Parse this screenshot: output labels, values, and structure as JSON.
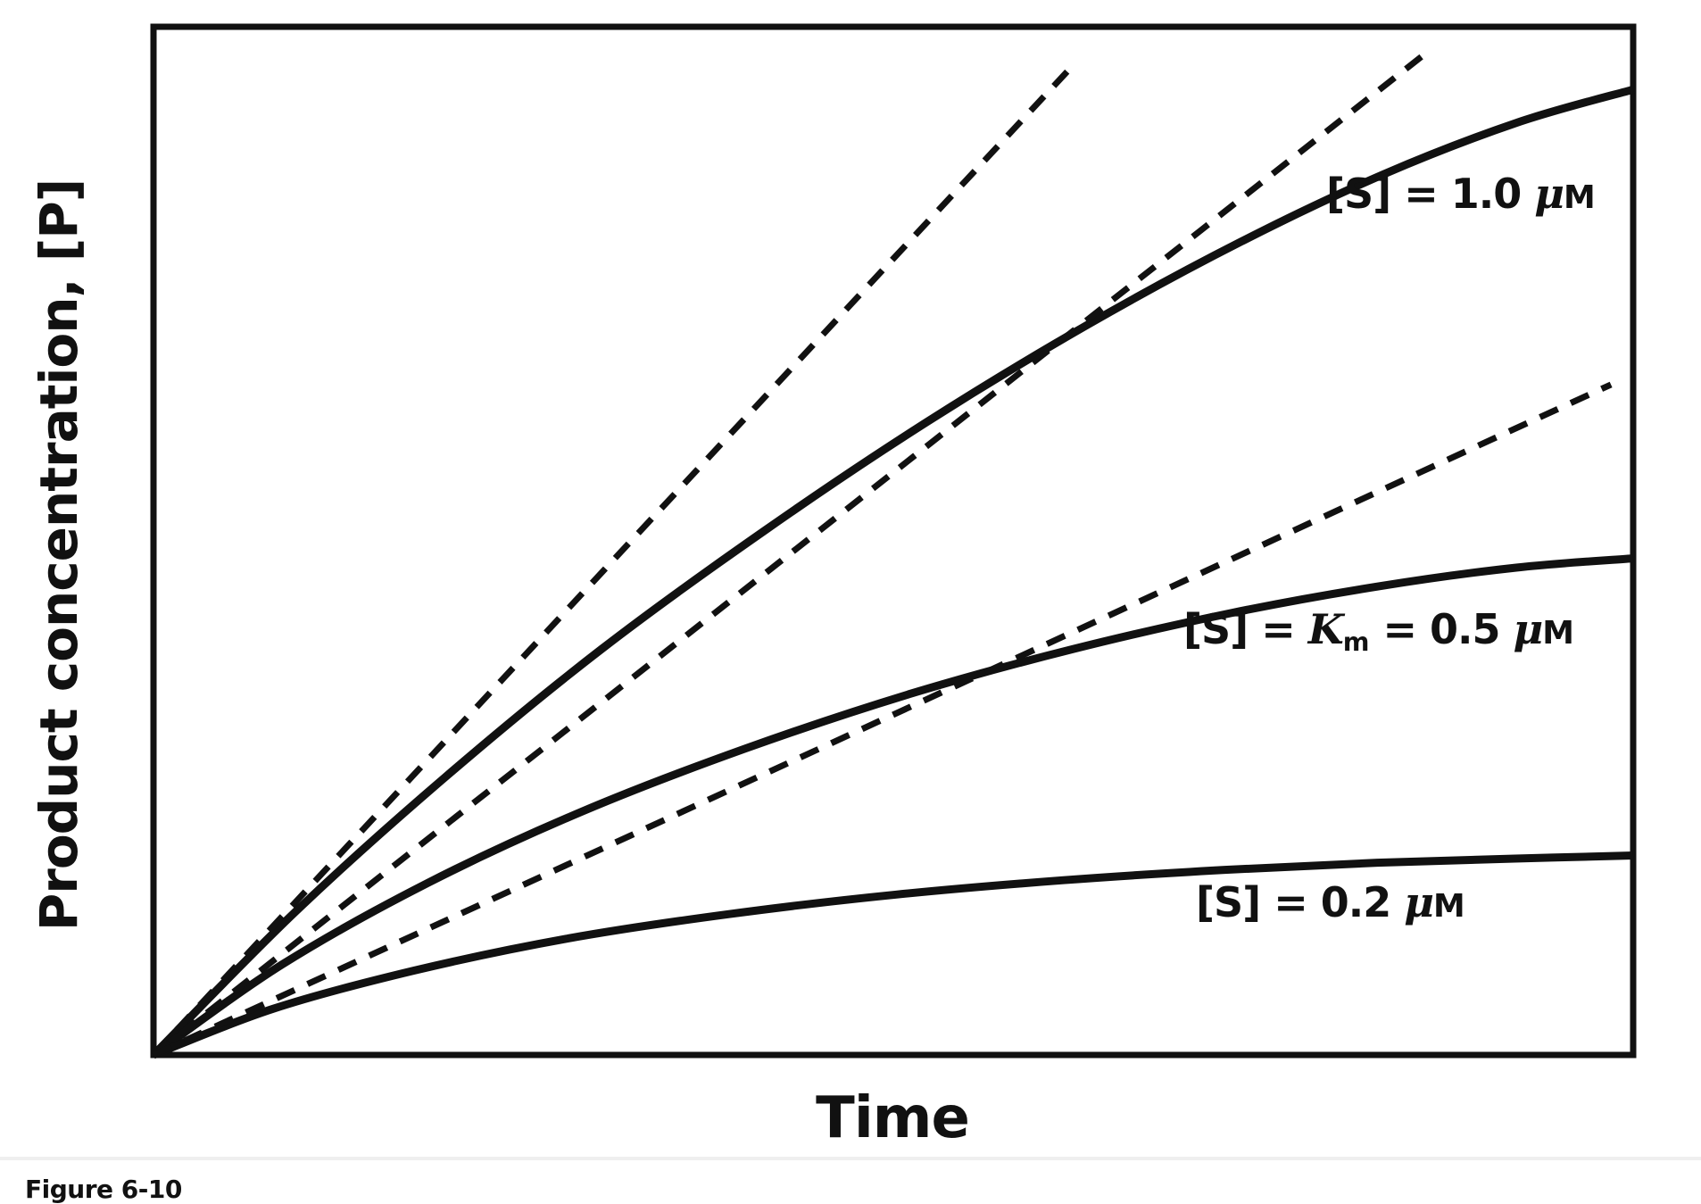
{
  "figure": {
    "caption": "Figure 6-10",
    "x_axis_label": "Time",
    "y_axis_label": "Product concentration, [P]"
  },
  "colors": {
    "ink": "#111111",
    "background": "#ffffff",
    "divider": "#efefef"
  },
  "curve_labels": {
    "s10": {
      "pre": "[S] = 1.0 ",
      "mu": "μ",
      "unit": "M"
    },
    "s05": {
      "pre": "[S] = ",
      "k": "K",
      "ksub": "m",
      "mid": " = 0.5 ",
      "mu": "μ",
      "unit": "M"
    },
    "s02": {
      "pre": "[S] = 0.2 ",
      "mu": "μ",
      "unit": "M"
    }
  },
  "chart_data": {
    "type": "line",
    "title": "",
    "xlabel": "Time",
    "ylabel": "Product concentration, [P]",
    "axes_note": "Conceptual axes: no tick marks or numeric scales shown; values below are relative (0-1) fractions of the plotted axis ranges.",
    "x_range": [
      0,
      1
    ],
    "y_range": [
      0,
      1
    ],
    "grid": false,
    "legend_position": "labels next to curves",
    "series": [
      {
        "name": "[S] = 1.0 μM",
        "style": "solid",
        "points": [
          [
            0,
            0
          ],
          [
            0.095,
            0.138
          ],
          [
            0.197,
            0.27
          ],
          [
            0.303,
            0.395
          ],
          [
            0.413,
            0.51
          ],
          [
            0.523,
            0.616
          ],
          [
            0.631,
            0.71
          ],
          [
            0.735,
            0.791
          ],
          [
            0.832,
            0.857
          ],
          [
            0.922,
            0.907
          ],
          [
            1.0,
            0.939
          ]
        ]
      },
      {
        "name": "[S] = Km = 0.5 μM",
        "style": "solid",
        "points": [
          [
            0,
            0
          ],
          [
            0.087,
            0.088
          ],
          [
            0.185,
            0.167
          ],
          [
            0.29,
            0.237
          ],
          [
            0.4,
            0.298
          ],
          [
            0.511,
            0.351
          ],
          [
            0.622,
            0.395
          ],
          [
            0.729,
            0.43
          ],
          [
            0.829,
            0.456
          ],
          [
            0.921,
            0.474
          ],
          [
            1.0,
            0.483
          ]
        ]
      },
      {
        "name": "[S] = 0.2 μM",
        "style": "solid",
        "points": [
          [
            0,
            0
          ],
          [
            0.081,
            0.045
          ],
          [
            0.176,
            0.082
          ],
          [
            0.279,
            0.113
          ],
          [
            0.389,
            0.137
          ],
          [
            0.502,
            0.156
          ],
          [
            0.615,
            0.17
          ],
          [
            0.724,
            0.18
          ],
          [
            0.827,
            0.187
          ],
          [
            0.92,
            0.191
          ],
          [
            1.0,
            0.194
          ]
        ]
      }
    ],
    "initial_rate_tangents": [
      {
        "name": "initial rate tangent, [S] = 1.0 μM",
        "style": "dashed",
        "from": [
          0,
          0
        ],
        "to": [
          0.623,
          0.965
        ]
      },
      {
        "name": "initial rate tangent, [S] = 0.5 μM",
        "style": "dashed",
        "from": [
          0,
          0
        ],
        "to": [
          0.857,
          0.971
        ]
      },
      {
        "name": "initial rate tangent, [S] = 0.2 μM",
        "style": "dashed",
        "from": [
          0,
          0
        ],
        "to": [
          0.985,
          0.652
        ]
      }
    ]
  }
}
